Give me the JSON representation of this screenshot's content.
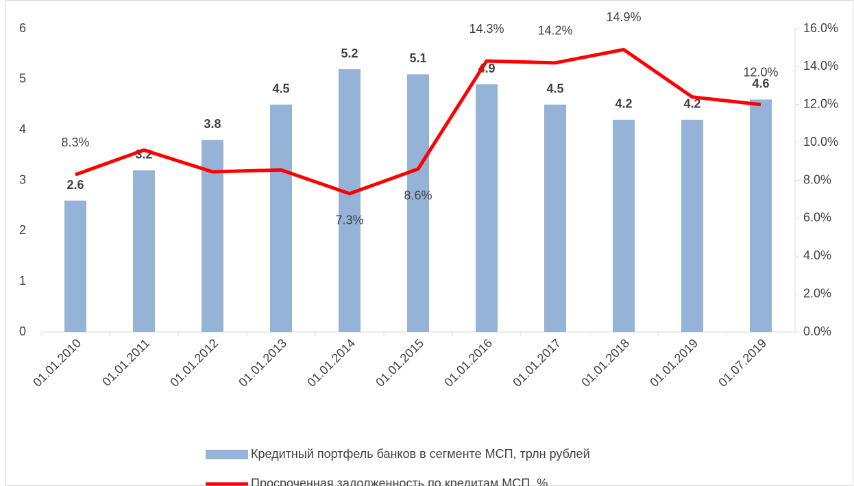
{
  "chart_data": {
    "type": "bar_line",
    "categories": [
      "01.01.2010",
      "01.01.2011",
      "01.01.2012",
      "01.01.2013",
      "01.01.2014",
      "01.01.2015",
      "01.01.2016",
      "01.01.2017",
      "01.01.2018",
      "01.01.2019",
      "01.07.2019"
    ],
    "series": [
      {
        "name": "Кредитный портфель банков в сегменте МСП, трлн рублей",
        "type": "bar",
        "color": "#95b3d7",
        "values": [
          2.6,
          3.2,
          3.8,
          4.5,
          5.2,
          5.1,
          4.9,
          4.5,
          4.2,
          4.2,
          4.6
        ]
      },
      {
        "name": "Просроченная задолженность по кредитам МСП, %",
        "type": "line",
        "color": "#ff0000",
        "axis": "y2",
        "values": [
          8.3,
          9.6,
          8.45,
          8.55,
          7.3,
          8.6,
          14.3,
          14.2,
          14.9,
          12.4,
          12.0
        ],
        "value_labels": [
          "8.3%",
          null,
          null,
          null,
          "7.3%",
          "8.6%",
          "14.3%",
          "14.2%",
          "14.9%",
          null,
          "12.0%"
        ]
      }
    ],
    "ylim": [
      0,
      6
    ],
    "yticks": [
      0,
      1,
      2,
      3,
      4,
      5,
      6
    ],
    "y2lim": [
      0,
      16
    ],
    "y2ticks": [
      {
        "value": 0,
        "label": "0.0%"
      },
      {
        "value": 2,
        "label": "2.0%"
      },
      {
        "value": 4,
        "label": "4.0%"
      },
      {
        "value": 6,
        "label": "6.0%"
      },
      {
        "value": 8,
        "label": "8.0%"
      },
      {
        "value": 10,
        "label": "10.0%"
      },
      {
        "value": 12,
        "label": "12.0%"
      },
      {
        "value": 14,
        "label": "14.0%"
      },
      {
        "value": 16,
        "label": "16.0%"
      }
    ]
  }
}
